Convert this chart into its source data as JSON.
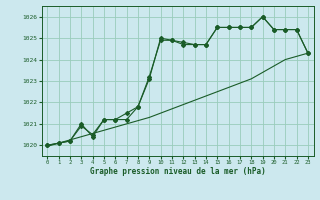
{
  "title": "Graphe pression niveau de la mer (hPa)",
  "bg_color": "#cce8ee",
  "grid_color": "#99ccbb",
  "line_color": "#1a5c28",
  "xlim": [
    -0.5,
    23.5
  ],
  "ylim": [
    1019.5,
    1026.5
  ],
  "yticks": [
    1020,
    1021,
    1022,
    1023,
    1024,
    1025,
    1026
  ],
  "xticks": [
    0,
    1,
    2,
    3,
    4,
    5,
    6,
    7,
    8,
    9,
    10,
    11,
    12,
    13,
    14,
    15,
    16,
    17,
    18,
    19,
    20,
    21,
    22,
    23
  ],
  "series1": {
    "x": [
      0,
      1,
      2,
      3,
      4,
      5,
      6,
      7,
      8,
      9,
      10,
      11,
      12,
      13,
      14,
      15,
      16,
      17,
      18,
      19,
      20,
      21,
      22,
      23
    ],
    "y": [
      1020.0,
      1020.1,
      1020.2,
      1020.9,
      1020.5,
      1021.2,
      1021.2,
      1021.2,
      1021.8,
      1023.2,
      1024.9,
      1024.9,
      1024.7,
      1024.7,
      1024.7,
      1025.5,
      1025.5,
      1025.5,
      1025.5,
      1026.0,
      1025.4,
      1025.4,
      1025.4,
      1024.3
    ]
  },
  "series2": {
    "x": [
      0,
      1,
      2,
      3,
      4,
      5,
      6,
      7,
      8,
      9,
      10,
      11,
      12,
      13,
      14,
      15,
      16,
      17,
      18,
      19,
      20,
      21,
      22,
      23
    ],
    "y": [
      1020.0,
      1020.1,
      1020.2,
      1021.0,
      1020.4,
      1021.2,
      1021.2,
      1021.5,
      1021.8,
      1023.1,
      1025.0,
      1024.9,
      1024.8,
      1024.7,
      1024.7,
      1025.5,
      1025.5,
      1025.5,
      1025.5,
      1026.0,
      1025.4,
      1025.4,
      1025.4,
      1024.3
    ]
  },
  "series3": {
    "x": [
      0,
      1,
      2,
      3,
      4,
      5,
      6,
      7,
      8,
      9,
      10,
      11,
      12,
      13,
      14,
      15,
      16,
      17,
      18,
      19,
      20,
      21,
      22,
      23
    ],
    "y": [
      1019.95,
      1020.1,
      1020.25,
      1020.4,
      1020.55,
      1020.7,
      1020.85,
      1021.0,
      1021.15,
      1021.3,
      1021.5,
      1021.7,
      1021.9,
      1022.1,
      1022.3,
      1022.5,
      1022.7,
      1022.9,
      1023.1,
      1023.4,
      1023.7,
      1024.0,
      1024.15,
      1024.3
    ]
  }
}
